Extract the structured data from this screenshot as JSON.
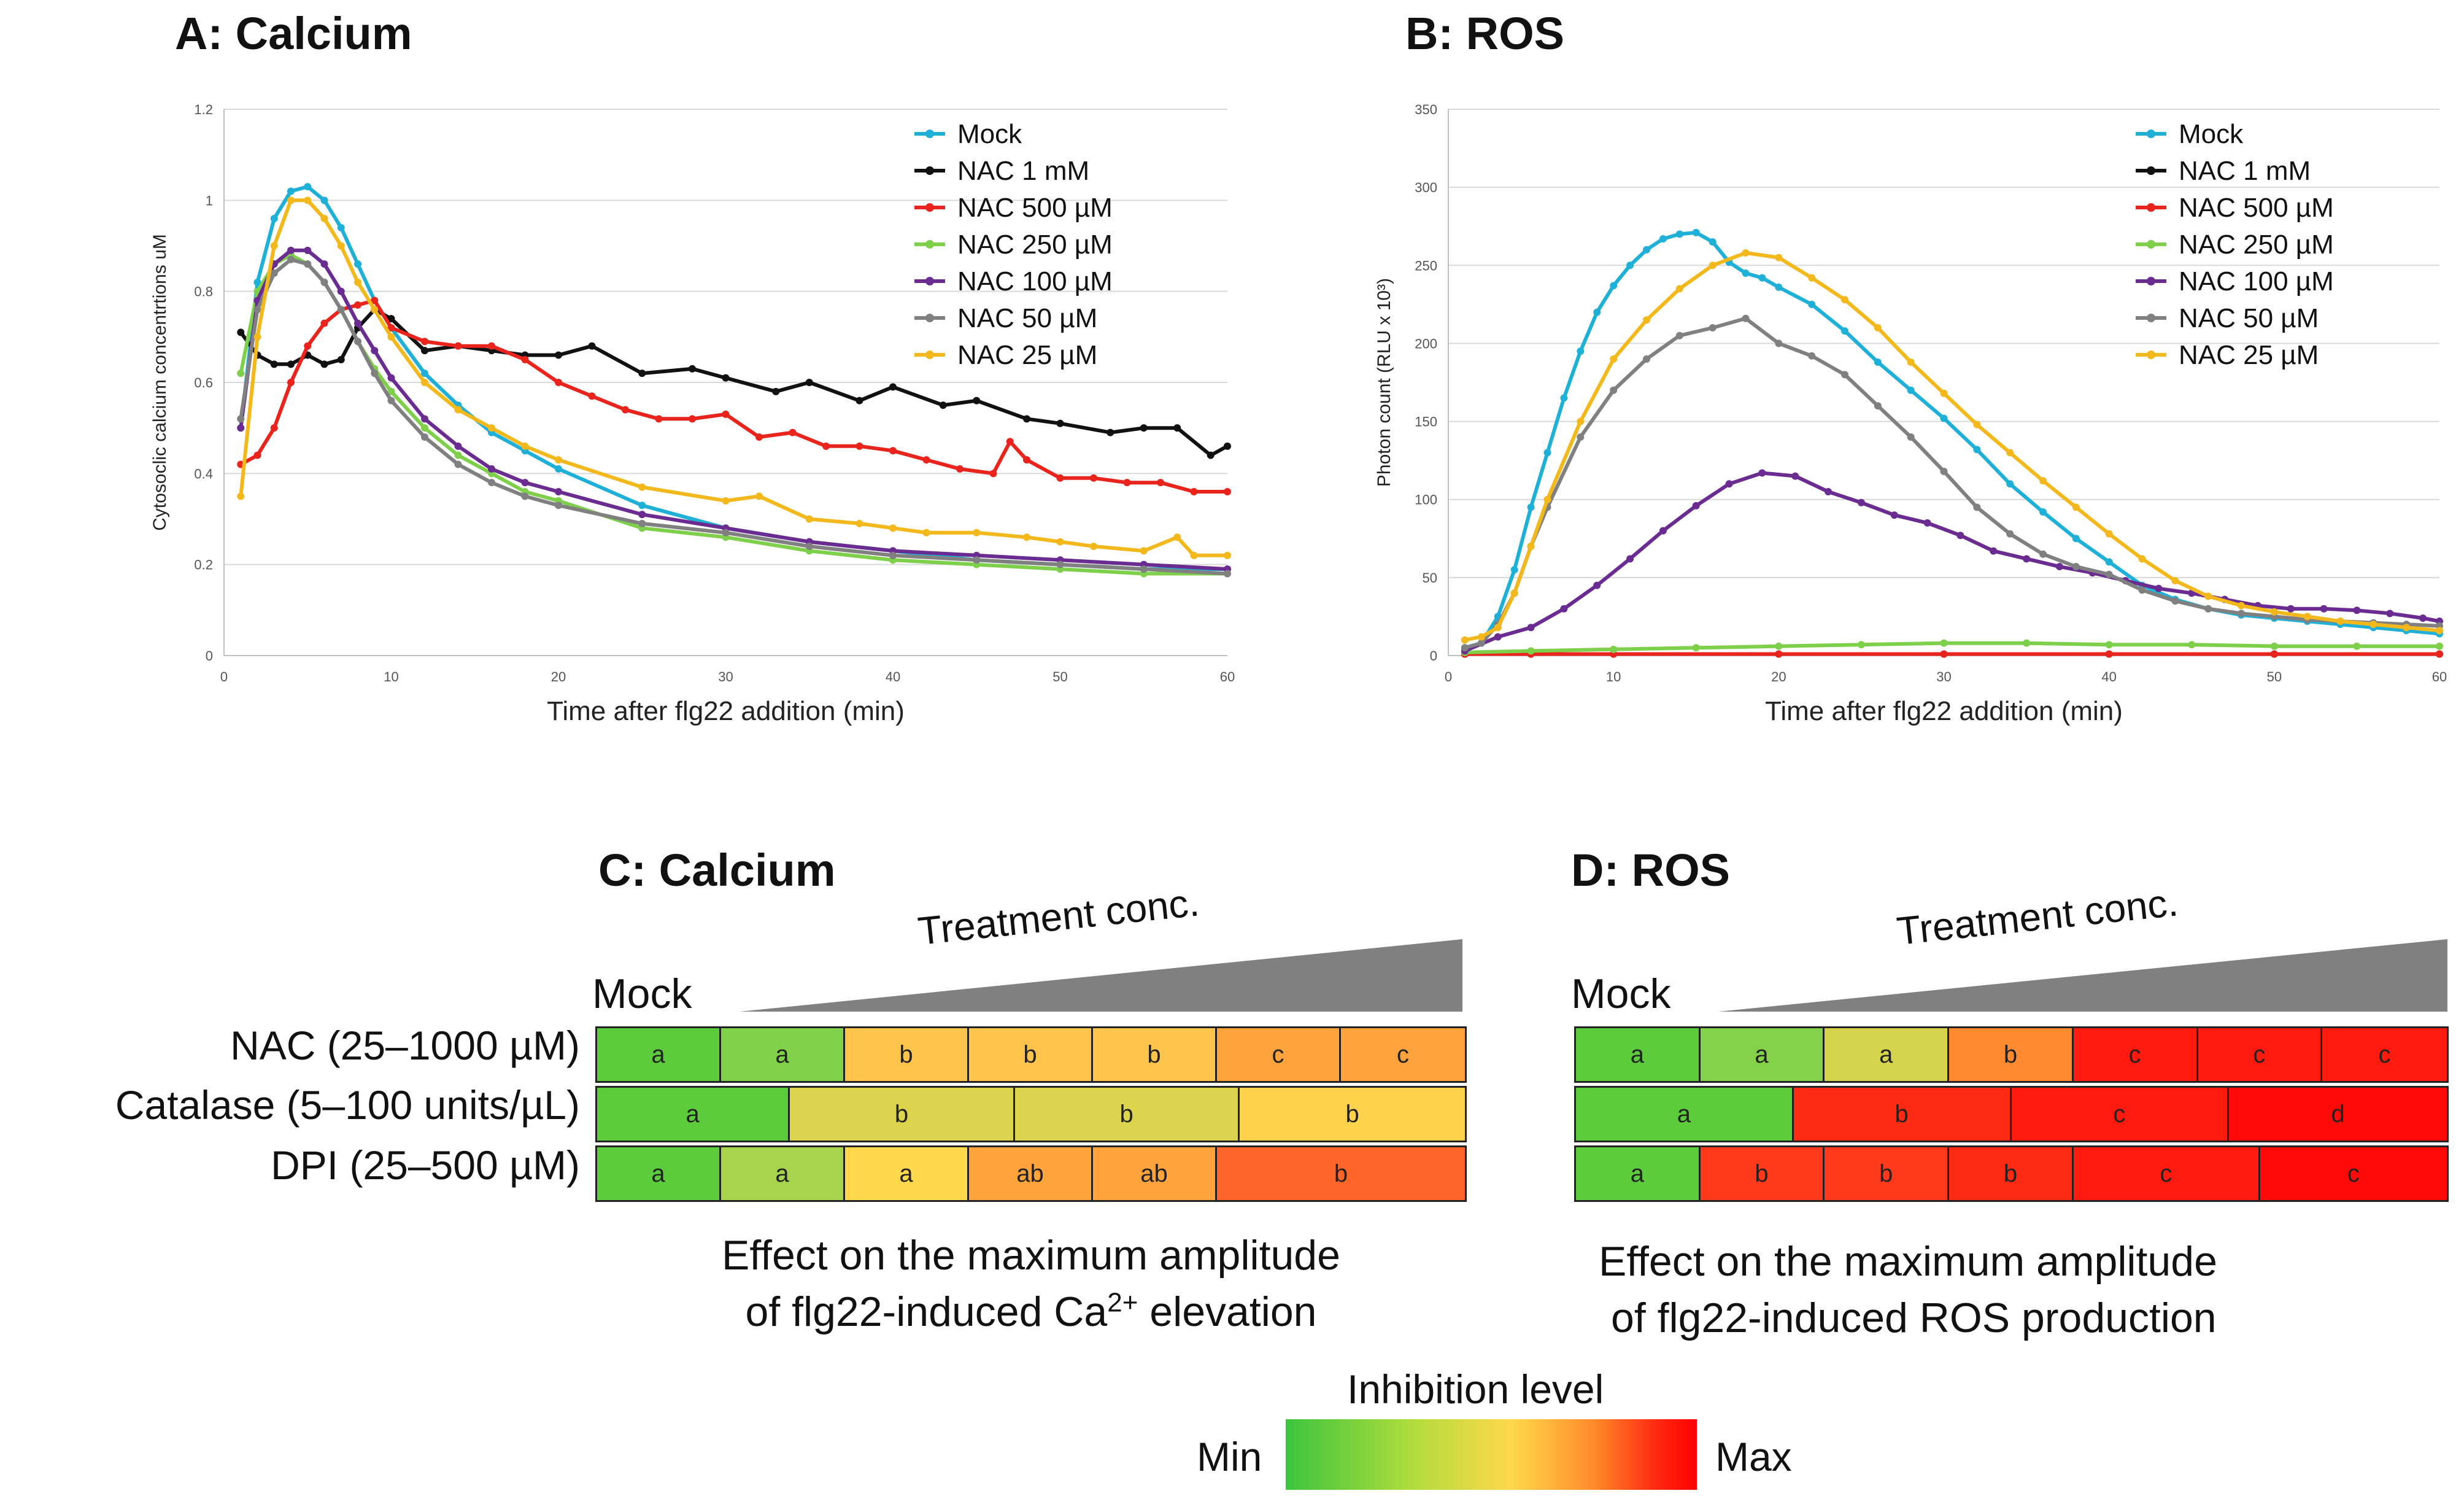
{
  "panels": {
    "a_title": "A:  Calcium",
    "b_title": "B:  ROS",
    "c_title": "C:  Calcium",
    "d_title": "D:  ROS"
  },
  "chart_data": [
    {
      "type": "line",
      "title": "A:  Calcium",
      "xlabel": "Time after flg22 addition (min)",
      "ylabel": "Cytosoclic calcium concentrtions uM",
      "xlim": [
        0,
        60
      ],
      "ylim": [
        0,
        1.2
      ],
      "xticks": [
        0,
        10,
        20,
        30,
        40,
        50,
        60
      ],
      "yticks": [
        0,
        0.2,
        0.4,
        0.6,
        0.8,
        1,
        1.2
      ],
      "ytick_labels": [
        "0",
        "0.2",
        "0.4",
        "0.6",
        "0.8",
        "1",
        "1.2"
      ],
      "grid": "horizontal",
      "legend": "top-right",
      "series": [
        {
          "name": "Mock",
          "color": "#1fb0d8",
          "x": [
            1,
            2,
            3,
            4,
            5,
            6,
            7,
            8,
            9,
            10,
            12,
            14,
            16,
            18,
            20,
            25,
            30,
            35,
            40,
            45,
            50,
            55,
            60
          ],
          "values": [
            0.5,
            0.82,
            0.96,
            1.02,
            1.03,
            1.0,
            0.94,
            0.86,
            0.78,
            0.72,
            0.62,
            0.55,
            0.49,
            0.45,
            0.41,
            0.33,
            0.28,
            0.25,
            0.23,
            0.21,
            0.2,
            0.19,
            0.19
          ]
        },
        {
          "name": "NAC 1 mM",
          "color": "#111111",
          "x": [
            1,
            2,
            3,
            4,
            5,
            6,
            7,
            8,
            9,
            10,
            12,
            14,
            16,
            18,
            20,
            22,
            25,
            28,
            30,
            33,
            35,
            38,
            40,
            43,
            45,
            48,
            50,
            53,
            55,
            57,
            59,
            60
          ],
          "values": [
            0.71,
            0.66,
            0.64,
            0.64,
            0.66,
            0.64,
            0.65,
            0.72,
            0.76,
            0.74,
            0.67,
            0.68,
            0.67,
            0.66,
            0.66,
            0.68,
            0.62,
            0.63,
            0.61,
            0.58,
            0.6,
            0.56,
            0.59,
            0.55,
            0.56,
            0.52,
            0.51,
            0.49,
            0.5,
            0.5,
            0.44,
            0.46
          ]
        },
        {
          "name": "NAC 500 µM",
          "color": "#e8241c",
          "x": [
            1,
            2,
            3,
            4,
            5,
            6,
            7,
            8,
            9,
            10,
            12,
            14,
            16,
            18,
            20,
            22,
            24,
            26,
            28,
            30,
            32,
            34,
            36,
            38,
            40,
            42,
            44,
            46,
            47,
            48,
            50,
            52,
            54,
            56,
            58,
            60
          ],
          "values": [
            0.42,
            0.44,
            0.5,
            0.6,
            0.68,
            0.73,
            0.76,
            0.77,
            0.78,
            0.72,
            0.69,
            0.68,
            0.68,
            0.65,
            0.6,
            0.57,
            0.54,
            0.52,
            0.52,
            0.53,
            0.48,
            0.49,
            0.46,
            0.46,
            0.45,
            0.43,
            0.41,
            0.4,
            0.47,
            0.43,
            0.39,
            0.39,
            0.38,
            0.38,
            0.36,
            0.36
          ]
        },
        {
          "name": "NAC 250 µM",
          "color": "#7ed04a",
          "x": [
            1,
            2,
            3,
            4,
            5,
            6,
            7,
            8,
            9,
            10,
            12,
            14,
            16,
            18,
            20,
            25,
            30,
            35,
            40,
            45,
            50,
            55,
            60
          ],
          "values": [
            0.62,
            0.8,
            0.86,
            0.88,
            0.86,
            0.82,
            0.76,
            0.69,
            0.63,
            0.58,
            0.5,
            0.44,
            0.4,
            0.36,
            0.34,
            0.28,
            0.26,
            0.23,
            0.21,
            0.2,
            0.19,
            0.18,
            0.18
          ]
        },
        {
          "name": "NAC 100 µM",
          "color": "#6a2c91",
          "x": [
            1,
            2,
            3,
            4,
            5,
            6,
            7,
            8,
            9,
            10,
            12,
            14,
            16,
            18,
            20,
            25,
            30,
            35,
            40,
            45,
            50,
            55,
            60
          ],
          "values": [
            0.5,
            0.78,
            0.86,
            0.89,
            0.89,
            0.86,
            0.8,
            0.73,
            0.67,
            0.61,
            0.52,
            0.46,
            0.41,
            0.38,
            0.36,
            0.31,
            0.28,
            0.25,
            0.23,
            0.22,
            0.21,
            0.2,
            0.19
          ]
        },
        {
          "name": "NAC 50 µM",
          "color": "#808080",
          "x": [
            1,
            2,
            3,
            4,
            5,
            6,
            7,
            8,
            9,
            10,
            12,
            14,
            16,
            18,
            20,
            25,
            30,
            35,
            40,
            45,
            50,
            55,
            60
          ],
          "values": [
            0.52,
            0.76,
            0.84,
            0.87,
            0.86,
            0.82,
            0.76,
            0.69,
            0.62,
            0.56,
            0.48,
            0.42,
            0.38,
            0.35,
            0.33,
            0.29,
            0.27,
            0.24,
            0.22,
            0.21,
            0.2,
            0.19,
            0.18
          ]
        },
        {
          "name": "NAC 25 µM",
          "color": "#f2b81c",
          "x": [
            1,
            2,
            3,
            4,
            5,
            6,
            7,
            8,
            9,
            10,
            12,
            14,
            16,
            18,
            20,
            25,
            30,
            32,
            35,
            38,
            40,
            42,
            45,
            48,
            50,
            52,
            55,
            57,
            58,
            60
          ],
          "values": [
            0.35,
            0.7,
            0.9,
            1.0,
            1.0,
            0.96,
            0.9,
            0.82,
            0.76,
            0.7,
            0.6,
            0.54,
            0.5,
            0.46,
            0.43,
            0.37,
            0.34,
            0.35,
            0.3,
            0.29,
            0.28,
            0.27,
            0.27,
            0.26,
            0.25,
            0.24,
            0.23,
            0.26,
            0.22,
            0.22
          ]
        }
      ]
    },
    {
      "type": "line",
      "title": "B:  ROS",
      "xlabel": "Time after flg22 addition (min)",
      "ylabel": "Photon count (RLU x 10³)",
      "xlim": [
        0,
        60
      ],
      "ylim": [
        0,
        350
      ],
      "xticks": [
        0,
        10,
        20,
        30,
        40,
        50,
        60
      ],
      "yticks": [
        0,
        50,
        100,
        150,
        200,
        250,
        300,
        350
      ],
      "ytick_labels": [
        "0",
        "50",
        "100",
        "150",
        "200",
        "250",
        "300",
        "350"
      ],
      "grid": "horizontal",
      "legend": "top-right",
      "series": [
        {
          "name": "Mock",
          "color": "#1fb0d8",
          "x": [
            1,
            2,
            3,
            4,
            5,
            6,
            7,
            8,
            9,
            10,
            11,
            12,
            13,
            14,
            15,
            16,
            17,
            18,
            19,
            20,
            22,
            24,
            26,
            28,
            30,
            32,
            34,
            36,
            38,
            40,
            42,
            44,
            46,
            48,
            50,
            52,
            54,
            56,
            58,
            60
          ],
          "values": [
            5,
            8,
            25,
            55,
            95,
            130,
            165,
            195,
            220,
            237,
            250,
            260,
            267,
            270,
            271,
            265,
            252,
            245,
            242,
            236,
            225,
            208,
            188,
            170,
            152,
            132,
            110,
            92,
            75,
            60,
            45,
            36,
            30,
            26,
            24,
            22,
            20,
            18,
            16,
            14
          ]
        },
        {
          "name": "NAC 1 mM",
          "color": "#111111",
          "x": [
            1,
            5,
            10,
            20,
            30,
            40,
            50,
            60
          ],
          "values": [
            1,
            1,
            1,
            1,
            1,
            1,
            1,
            1
          ]
        },
        {
          "name": "NAC 500 µM",
          "color": "#e8241c",
          "x": [
            1,
            5,
            10,
            20,
            30,
            40,
            50,
            60
          ],
          "values": [
            1,
            1,
            1,
            1,
            1,
            1,
            1,
            1
          ]
        },
        {
          "name": "NAC 250 µM",
          "color": "#7ed04a",
          "x": [
            1,
            5,
            10,
            15,
            20,
            25,
            30,
            35,
            40,
            45,
            50,
            55,
            60
          ],
          "values": [
            2,
            3,
            4,
            5,
            6,
            7,
            8,
            8,
            7,
            7,
            6,
            6,
            6
          ]
        },
        {
          "name": "NAC 100 µM",
          "color": "#6a2c91",
          "x": [
            1,
            3,
            5,
            7,
            9,
            11,
            13,
            15,
            17,
            19,
            21,
            23,
            25,
            27,
            29,
            31,
            33,
            35,
            37,
            39,
            41,
            43,
            45,
            47,
            49,
            51,
            53,
            55,
            57,
            59,
            60
          ],
          "values": [
            3,
            12,
            18,
            30,
            45,
            62,
            80,
            96,
            110,
            117,
            115,
            105,
            98,
            90,
            85,
            77,
            67,
            62,
            57,
            53,
            48,
            43,
            40,
            36,
            32,
            30,
            30,
            29,
            27,
            24,
            22
          ]
        },
        {
          "name": "NAC 50 µM",
          "color": "#808080",
          "x": [
            1,
            2,
            3,
            4,
            5,
            6,
            8,
            10,
            12,
            14,
            16,
            18,
            20,
            22,
            24,
            26,
            28,
            30,
            32,
            34,
            36,
            38,
            40,
            42,
            44,
            46,
            48,
            50,
            52,
            54,
            56,
            58,
            60
          ],
          "values": [
            5,
            8,
            20,
            40,
            70,
            95,
            140,
            170,
            190,
            205,
            210,
            216,
            200,
            192,
            180,
            160,
            140,
            118,
            95,
            78,
            65,
            57,
            52,
            42,
            35,
            30,
            27,
            25,
            23,
            22,
            21,
            20,
            19
          ]
        },
        {
          "name": "NAC 25 µM",
          "color": "#f2b81c",
          "x": [
            1,
            2,
            3,
            4,
            5,
            6,
            8,
            10,
            12,
            14,
            16,
            18,
            20,
            22,
            24,
            26,
            28,
            30,
            32,
            34,
            36,
            38,
            40,
            42,
            44,
            46,
            48,
            50,
            52,
            54,
            56,
            58,
            60
          ],
          "values": [
            10,
            12,
            18,
            40,
            70,
            100,
            150,
            190,
            215,
            235,
            250,
            258,
            255,
            242,
            228,
            210,
            188,
            168,
            148,
            130,
            112,
            95,
            78,
            62,
            48,
            38,
            32,
            28,
            25,
            22,
            20,
            18,
            16
          ]
        }
      ]
    }
  ],
  "heatmap_c": {
    "title": "C:  Calcium",
    "mock_label": "Mock",
    "conc_label": "Treatment conc.",
    "rows": [
      {
        "label": "NAC (25–1000 µM)",
        "cells": [
          {
            "text": "a",
            "weight": 1,
            "color": "#5ccc3c"
          },
          {
            "text": "a",
            "weight": 1,
            "color": "#7fd24a"
          },
          {
            "text": "b",
            "weight": 1,
            "color": "#ffc44c"
          },
          {
            "text": "b",
            "weight": 1,
            "color": "#ffc44c"
          },
          {
            "text": "b",
            "weight": 1,
            "color": "#ffc44c"
          },
          {
            "text": "c",
            "weight": 1,
            "color": "#ffa43c"
          },
          {
            "text": "c",
            "weight": 1,
            "color": "#ffa43c"
          }
        ]
      },
      {
        "label": "Catalase (5–100 units/µL)",
        "cells": [
          {
            "text": "a",
            "weight": 1.5,
            "color": "#5ccc3c"
          },
          {
            "text": "b",
            "weight": 1.75,
            "color": "#dcd44c"
          },
          {
            "text": "b",
            "weight": 1.75,
            "color": "#dcd44c"
          },
          {
            "text": "b",
            "weight": 1.75,
            "color": "#ffd24c"
          }
        ]
      },
      {
        "label": "DPI (25–500 µM)",
        "cells": [
          {
            "text": "a",
            "weight": 1,
            "color": "#5ccc3c"
          },
          {
            "text": "a",
            "weight": 1,
            "color": "#a6d44c"
          },
          {
            "text": "a",
            "weight": 1,
            "color": "#ffd84c"
          },
          {
            "text": "ab",
            "weight": 1,
            "color": "#ffa43c"
          },
          {
            "text": "ab",
            "weight": 1,
            "color": "#ffa43c"
          },
          {
            "text": "b",
            "weight": 2,
            "color": "#ff6428"
          }
        ]
      }
    ],
    "caption_line1": "Effect on the maximum amplitude",
    "caption_line2_pre": "of flg22-induced Ca",
    "caption_sup": "2+",
    "caption_line2_post": " elevation"
  },
  "heatmap_d": {
    "title": "D:  ROS",
    "mock_label": "Mock",
    "conc_label": "Treatment conc.",
    "rows": [
      {
        "cells": [
          {
            "text": "a",
            "weight": 1,
            "color": "#5ccc3c"
          },
          {
            "text": "a",
            "weight": 1,
            "color": "#84d24a"
          },
          {
            "text": "a",
            "weight": 1,
            "color": "#d6d44c"
          },
          {
            "text": "b",
            "weight": 1,
            "color": "#ff8a30"
          },
          {
            "text": "c",
            "weight": 1,
            "color": "#ff1a10"
          },
          {
            "text": "c",
            "weight": 1,
            "color": "#ff1a10"
          },
          {
            "text": "c",
            "weight": 1,
            "color": "#ff1a10"
          }
        ]
      },
      {
        "cells": [
          {
            "text": "a",
            "weight": 1.75,
            "color": "#5ccc3c"
          },
          {
            "text": "b",
            "weight": 1.75,
            "color": "#ff2a14"
          },
          {
            "text": "c",
            "weight": 1.75,
            "color": "#ff1a10"
          },
          {
            "text": "d",
            "weight": 1.75,
            "color": "#ff0a08"
          }
        ]
      },
      {
        "cells": [
          {
            "text": "a",
            "weight": 1,
            "color": "#5ccc3c"
          },
          {
            "text": "b",
            "weight": 1,
            "color": "#ff3a1c"
          },
          {
            "text": "b",
            "weight": 1,
            "color": "#ff3a1c"
          },
          {
            "text": "b",
            "weight": 1,
            "color": "#ff2a14"
          },
          {
            "text": "c",
            "weight": 1.5,
            "color": "#ff1a10"
          },
          {
            "text": "c",
            "weight": 1.5,
            "color": "#ff0a08"
          }
        ]
      }
    ],
    "caption_line1": "Effect on the maximum amplitude",
    "caption_line2": "of flg22-induced ROS production"
  },
  "scale": {
    "title": "Inhibition level",
    "min": "Min",
    "max": "Max"
  }
}
